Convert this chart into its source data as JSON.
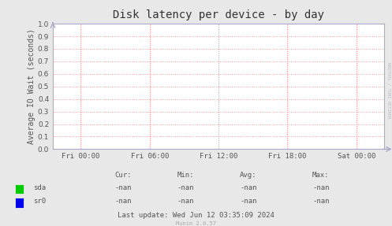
{
  "title": "Disk latency per device - by day",
  "ylabel": "Average IO Wait (seconds)",
  "background_color": "#e8e8e8",
  "plot_bg_color": "#ffffff",
  "grid_color": "#ff9999",
  "xlim": [
    0,
    1
  ],
  "ylim": [
    0.0,
    1.0
  ],
  "yticks": [
    0.0,
    0.1,
    0.2,
    0.3,
    0.4,
    0.5,
    0.6,
    0.7,
    0.8,
    0.9,
    1.0
  ],
  "xtick_labels": [
    "Fri 00:00",
    "Fri 06:00",
    "Fri 12:00",
    "Fri 18:00",
    "Sat 00:00"
  ],
  "xtick_positions": [
    0.083,
    0.292,
    0.5,
    0.708,
    0.917
  ],
  "legend": [
    {
      "label": "sda",
      "color": "#00cc00"
    },
    {
      "label": "sr0",
      "color": "#0000ee"
    }
  ],
  "table_headers": [
    "Cur:",
    "Min:",
    "Avg:",
    "Max:"
  ],
  "table_rows": [
    {
      "name": "sda",
      "values": [
        "-nan",
        "-nan",
        "-nan",
        "-nan"
      ]
    },
    {
      "name": "sr0",
      "values": [
        "-nan",
        "-nan",
        "-nan",
        "-nan"
      ]
    }
  ],
  "last_update": "Last update: Wed Jun 12 03:35:09 2024",
  "munin_version": "Munin 2.0.57",
  "rrdtool_text": "RRDTOOL / TOBI OETIKER",
  "title_fontsize": 10,
  "axis_fontsize": 7,
  "tick_fontsize": 6.5,
  "table_fontsize": 6.5,
  "arrow_color": "#aaaacc",
  "spine_color": "#aaaacc",
  "text_color": "#555555"
}
